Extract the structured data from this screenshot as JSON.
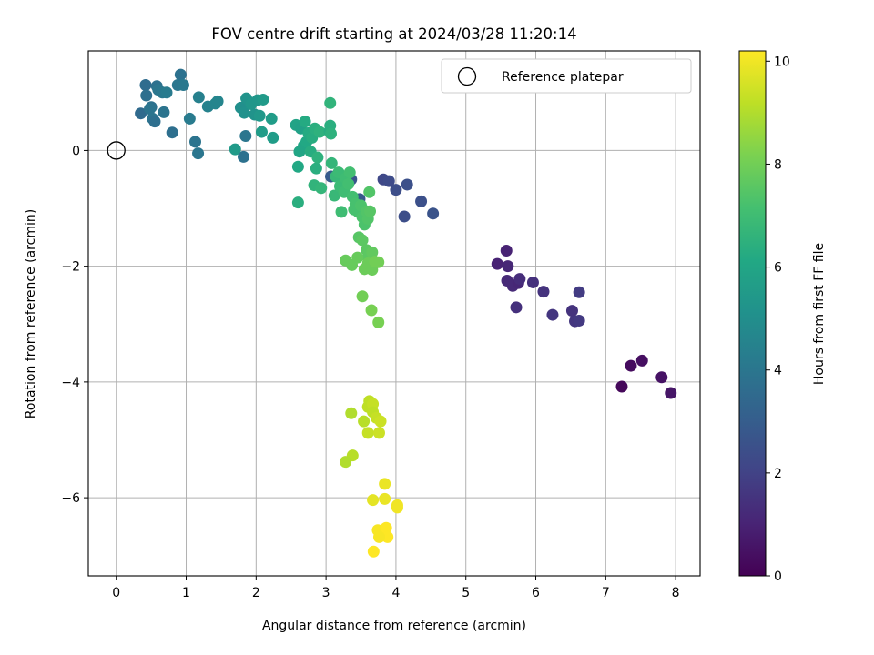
{
  "chart_data": {
    "type": "scatter",
    "title": "FOV centre drift starting at 2024/03/28 11:20:14",
    "xlabel": "Angular distance from reference (arcmin)",
    "ylabel": "Rotation from reference (arcmin)",
    "xlim": [
      -0.4,
      8.35
    ],
    "ylim": [
      -7.35,
      1.72
    ],
    "xticks": [
      0,
      1,
      2,
      3,
      4,
      5,
      6,
      7,
      8
    ],
    "yticks": [
      -6,
      -4,
      -2,
      0
    ],
    "grid": true,
    "legend": {
      "position": "top-right",
      "entries": [
        "Reference platepar"
      ]
    },
    "reference_point": {
      "x": 0,
      "y": 0
    },
    "colorbar": {
      "label": "Hours from first FF file",
      "colormap": "viridis",
      "range": [
        0,
        10.2
      ],
      "ticks": [
        0,
        2,
        4,
        6,
        8,
        10
      ]
    },
    "points": [
      [
        7.23,
        -4.08,
        0.2
      ],
      [
        7.36,
        -3.72,
        0.3
      ],
      [
        7.52,
        -3.63,
        0.4
      ],
      [
        7.8,
        -3.92,
        0.5
      ],
      [
        7.93,
        -4.19,
        0.6
      ],
      [
        5.45,
        -1.96,
        1.0
      ],
      [
        5.58,
        -1.73,
        1.0
      ],
      [
        5.6,
        -2.0,
        1.1
      ],
      [
        5.59,
        -2.25,
        1.2
      ],
      [
        5.67,
        -2.34,
        1.2
      ],
      [
        5.75,
        -2.29,
        1.1
      ],
      [
        5.77,
        -2.22,
        1.3
      ],
      [
        5.96,
        -2.28,
        1.4
      ],
      [
        5.72,
        -2.71,
        1.4
      ],
      [
        6.11,
        -2.44,
        1.5
      ],
      [
        6.24,
        -2.84,
        1.6
      ],
      [
        6.52,
        -2.77,
        1.5
      ],
      [
        6.56,
        -2.95,
        1.6
      ],
      [
        6.62,
        -2.94,
        1.7
      ],
      [
        6.62,
        -2.45,
        1.8
      ],
      [
        3.82,
        -0.5,
        2.2
      ],
      [
        3.9,
        -0.53,
        2.3
      ],
      [
        4.12,
        -1.14,
        2.4
      ],
      [
        4.16,
        -0.59,
        2.5
      ],
      [
        4.36,
        -0.88,
        2.5
      ],
      [
        4.53,
        -1.09,
        2.6
      ],
      [
        4.0,
        -0.68,
        2.4
      ],
      [
        3.36,
        -0.5,
        2.7
      ],
      [
        3.48,
        -0.84,
        2.8
      ],
      [
        3.07,
        -0.45,
        2.9
      ],
      [
        0.35,
        0.64,
        3.5
      ],
      [
        0.42,
        1.13,
        3.6
      ],
      [
        0.43,
        0.95,
        3.7
      ],
      [
        0.5,
        0.75,
        3.8
      ],
      [
        0.52,
        0.55,
        3.9
      ],
      [
        0.58,
        1.11,
        3.8
      ],
      [
        0.6,
        1.05,
        4.0
      ],
      [
        0.66,
        1.0,
        4.1
      ],
      [
        0.68,
        0.66,
        3.9
      ],
      [
        0.72,
        1.0,
        4.2
      ],
      [
        0.8,
        0.31,
        3.7
      ],
      [
        0.88,
        1.13,
        4.0
      ],
      [
        0.92,
        1.31,
        3.8
      ],
      [
        0.96,
        1.13,
        4.1
      ],
      [
        1.05,
        0.55,
        4.2
      ],
      [
        1.13,
        0.15,
        3.9
      ],
      [
        1.17,
        -0.05,
        4.0
      ],
      [
        1.18,
        0.92,
        4.4
      ],
      [
        1.31,
        0.76,
        4.5
      ],
      [
        1.42,
        0.81,
        4.6
      ],
      [
        1.45,
        0.85,
        4.6
      ],
      [
        1.82,
        -0.11,
        3.8
      ],
      [
        1.85,
        0.25,
        4.0
      ],
      [
        0.55,
        0.5,
        3.7
      ],
      [
        0.48,
        0.72,
        3.9
      ],
      [
        1.7,
        0.02,
        5.5
      ],
      [
        1.78,
        0.74,
        5.0
      ],
      [
        1.83,
        0.65,
        5.1
      ],
      [
        1.86,
        0.9,
        5.2
      ],
      [
        1.93,
        0.8,
        5.3
      ],
      [
        1.98,
        0.62,
        5.2
      ],
      [
        2.02,
        0.87,
        5.3
      ],
      [
        2.05,
        0.6,
        5.4
      ],
      [
        2.08,
        0.32,
        5.6
      ],
      [
        2.1,
        0.88,
        5.5
      ],
      [
        2.22,
        0.55,
        5.6
      ],
      [
        2.24,
        0.22,
        5.6
      ],
      [
        2.57,
        0.44,
        5.9
      ],
      [
        2.6,
        -0.28,
        6.1
      ],
      [
        2.62,
        -0.02,
        6.0
      ],
      [
        2.64,
        0.38,
        5.8
      ],
      [
        2.68,
        0.08,
        6.0
      ],
      [
        2.7,
        0.5,
        6.2
      ],
      [
        2.72,
        0.15,
        6.1
      ],
      [
        2.75,
        0.3,
        6.2
      ],
      [
        2.78,
        -0.02,
        6.3
      ],
      [
        2.8,
        0.22,
        6.3
      ],
      [
        2.84,
        0.38,
        6.4
      ],
      [
        2.86,
        -0.31,
        6.4
      ],
      [
        2.88,
        -0.12,
        6.5
      ],
      [
        2.91,
        0.32,
        6.5
      ],
      [
        3.05,
        0.33,
        6.3
      ],
      [
        3.06,
        0.43,
        6.4
      ],
      [
        3.07,
        0.29,
        6.5
      ],
      [
        3.06,
        0.82,
        6.6
      ],
      [
        2.6,
        -0.9,
        6.4
      ],
      [
        2.83,
        -0.6,
        6.6
      ],
      [
        2.93,
        -0.65,
        6.7
      ],
      [
        3.08,
        -0.22,
        6.7
      ],
      [
        3.12,
        -0.78,
        6.8
      ],
      [
        3.14,
        -0.45,
        6.8
      ],
      [
        3.18,
        -0.38,
        6.9
      ],
      [
        3.2,
        -0.62,
        6.9
      ],
      [
        3.22,
        -1.06,
        7.0
      ],
      [
        3.26,
        -0.72,
        7.0
      ],
      [
        3.28,
        -0.48,
        7.0
      ],
      [
        3.32,
        -0.58,
        7.1
      ],
      [
        3.34,
        -0.38,
        7.1
      ],
      [
        3.38,
        -0.8,
        7.1
      ],
      [
        3.4,
        -1.02,
        7.2
      ],
      [
        3.42,
        -0.92,
        7.2
      ],
      [
        3.46,
        -1.06,
        7.2
      ],
      [
        3.5,
        -0.95,
        7.3
      ],
      [
        3.52,
        -1.15,
        7.3
      ],
      [
        3.55,
        -1.28,
        7.3
      ],
      [
        3.58,
        -1.05,
        7.4
      ],
      [
        3.6,
        -1.18,
        7.4
      ],
      [
        3.62,
        -0.72,
        7.4
      ],
      [
        3.63,
        -1.05,
        7.5
      ],
      [
        3.47,
        -1.5,
        7.5
      ],
      [
        3.52,
        -1.55,
        7.6
      ],
      [
        3.58,
        -1.72,
        7.6
      ],
      [
        3.6,
        -1.85,
        7.6
      ],
      [
        3.66,
        -1.76,
        7.7
      ],
      [
        3.28,
        -1.9,
        7.8
      ],
      [
        3.37,
        -1.98,
        7.8
      ],
      [
        3.45,
        -1.85,
        7.8
      ],
      [
        3.55,
        -2.05,
        7.9
      ],
      [
        3.6,
        -1.95,
        7.9
      ],
      [
        3.66,
        -2.06,
        7.9
      ],
      [
        3.7,
        -1.92,
        8.0
      ],
      [
        3.75,
        -1.93,
        8.0
      ],
      [
        3.52,
        -2.52,
        8.0
      ],
      [
        3.65,
        -2.76,
        8.1
      ],
      [
        3.75,
        -2.97,
        8.1
      ],
      [
        3.36,
        -4.54,
        9.0
      ],
      [
        3.54,
        -4.68,
        9.1
      ],
      [
        3.6,
        -4.43,
        9.2
      ],
      [
        3.62,
        -4.33,
        9.2
      ],
      [
        3.67,
        -4.38,
        9.3
      ],
      [
        3.67,
        -4.52,
        9.2
      ],
      [
        3.72,
        -4.62,
        9.3
      ],
      [
        3.78,
        -4.68,
        9.4
      ],
      [
        3.6,
        -4.88,
        9.3
      ],
      [
        3.76,
        -4.88,
        9.4
      ],
      [
        3.38,
        -5.27,
        9.1
      ],
      [
        3.28,
        -5.38,
        9.0
      ],
      [
        3.67,
        -6.04,
        9.8
      ],
      [
        3.84,
        -5.76,
        9.9
      ],
      [
        3.84,
        -6.02,
        9.9
      ],
      [
        4.02,
        -6.13,
        10.0
      ],
      [
        4.02,
        -6.17,
        10.0
      ],
      [
        3.74,
        -6.56,
        10.1
      ],
      [
        3.82,
        -6.58,
        10.1
      ],
      [
        3.86,
        -6.52,
        10.2
      ],
      [
        3.88,
        -6.68,
        10.2
      ],
      [
        3.76,
        -6.68,
        10.1
      ],
      [
        3.68,
        -6.93,
        10.2
      ]
    ]
  }
}
